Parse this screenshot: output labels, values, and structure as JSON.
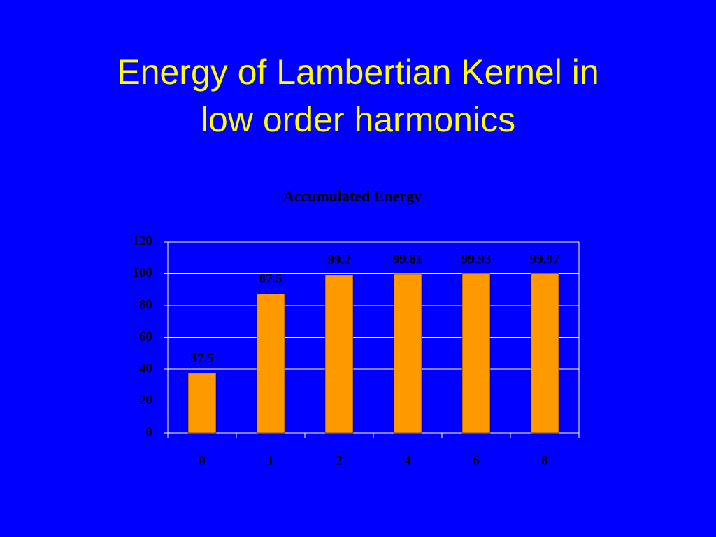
{
  "slide_title": [
    "Energy of Lambertian Kernel in",
    "low order harmonics"
  ],
  "chart_data": {
    "type": "bar",
    "title": "Accumulated Energy",
    "categories": [
      "0",
      "1",
      "2",
      "4",
      "6",
      "8"
    ],
    "values": [
      37.5,
      87.5,
      99.2,
      99.81,
      99.93,
      99.97
    ],
    "color": "#ff9900",
    "ylim": [
      0,
      120
    ],
    "yticks": [
      0,
      20,
      40,
      60,
      80,
      100,
      120
    ],
    "grid": true
  }
}
